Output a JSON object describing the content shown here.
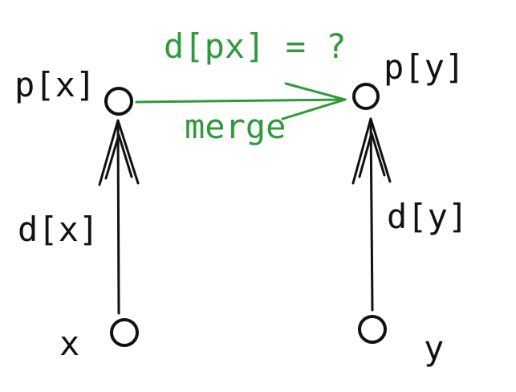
{
  "colors": {
    "ink": "#111111",
    "accent": "#2e9a3a",
    "background": "#ffffff"
  },
  "labels": {
    "px": "p[x]",
    "py": "p[y]",
    "dx": "d[x]",
    "dy": "d[y]",
    "x": "x",
    "y": "y",
    "dpx_question": "d[px] = ?",
    "merge": "merge"
  }
}
